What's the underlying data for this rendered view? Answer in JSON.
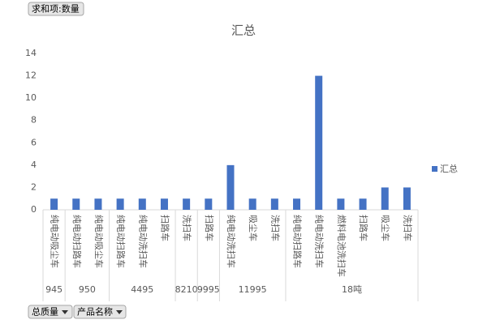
{
  "pivot_buttons": {
    "value_field": "求和项:数量",
    "row_fields": [
      "总质量",
      "产品名称"
    ]
  },
  "chart_data": {
    "type": "bar",
    "title": "汇总",
    "series": [
      {
        "name": "汇总",
        "color": "#4472c4"
      }
    ],
    "groups": [
      {
        "name": "945",
        "categories": [
          "纯电动吸尘车"
        ],
        "values": [
          1
        ]
      },
      {
        "name": "950",
        "categories": [
          "纯电动扫路车",
          "纯电动吸尘车"
        ],
        "values": [
          1,
          1
        ]
      },
      {
        "name": "4495",
        "categories": [
          "纯电动扫路车",
          "纯电动洗扫车",
          "扫路车"
        ],
        "values": [
          1,
          1,
          1
        ]
      },
      {
        "name": "8210",
        "categories": [
          "洗扫车"
        ],
        "values": [
          1
        ]
      },
      {
        "name": "9995",
        "categories": [
          "扫路车"
        ],
        "values": [
          1
        ]
      },
      {
        "name": "11995",
        "categories": [
          "纯电动洗扫车",
          "吸尘车",
          "洗扫车"
        ],
        "values": [
          4,
          1,
          1
        ]
      },
      {
        "name": "18吨",
        "categories": [
          "纯电动扫路车",
          "纯电动洗扫车",
          "燃料电池洗扫车",
          "扫路车",
          "吸尘车",
          "洗扫车"
        ],
        "values": [
          1,
          12,
          1,
          1,
          2,
          2
        ]
      }
    ],
    "ylim": [
      0,
      14
    ],
    "yticks": [
      0,
      2,
      4,
      6,
      8,
      10,
      12,
      14
    ],
    "grid": false,
    "legend": "right"
  }
}
